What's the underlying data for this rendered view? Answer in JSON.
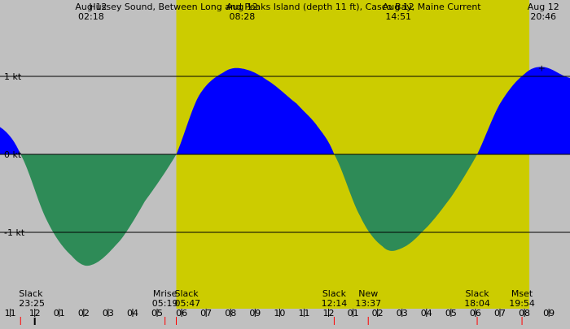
{
  "chart_data": {
    "type": "area",
    "title": "Hussey Sound, Between Long and Peaks Island (depth 11 ft), Casco Bay, Maine Current",
    "unit": "kt",
    "x_unit": "hours",
    "xlim": [
      -1.42,
      21.86
    ],
    "ylim": [
      -1.98,
      1.98
    ],
    "y_ticks": [
      {
        "value": 1,
        "label": "1 kt"
      },
      {
        "value": 0,
        "label": "0 kt"
      },
      {
        "value": -1,
        "label": "-1 kt"
      }
    ],
    "daylight": {
      "start": 5.78,
      "end": 20.2
    },
    "top_events": [
      {
        "x": 2.3,
        "date": "Aug 12",
        "time": "02:18"
      },
      {
        "x": 8.47,
        "date": "Aug 12",
        "time": "08:28"
      },
      {
        "x": 14.85,
        "date": "Aug 12",
        "time": "14:51"
      },
      {
        "x": 20.77,
        "date": "Aug 12",
        "time": "20:46"
      }
    ],
    "current_knots": [
      {
        "x": -1.42,
        "y": 0.35
      },
      {
        "x": -0.58,
        "y": 0.0
      },
      {
        "x": 0.5,
        "y": -0.85
      },
      {
        "x": 1.5,
        "y": -1.3
      },
      {
        "x": 2.3,
        "y": -1.42
      },
      {
        "x": 3.5,
        "y": -1.1
      },
      {
        "x": 4.5,
        "y": -0.6
      },
      {
        "x": 5.78,
        "y": 0.0
      },
      {
        "x": 6.7,
        "y": 0.75
      },
      {
        "x": 7.7,
        "y": 1.05
      },
      {
        "x": 8.47,
        "y": 1.1
      },
      {
        "x": 9.5,
        "y": 0.95
      },
      {
        "x": 10.7,
        "y": 0.65
      },
      {
        "x": 11.5,
        "y": 0.38
      },
      {
        "x": 12.23,
        "y": 0.0
      },
      {
        "x": 13.3,
        "y": -0.8
      },
      {
        "x": 14.2,
        "y": -1.18
      },
      {
        "x": 14.85,
        "y": -1.22
      },
      {
        "x": 15.8,
        "y": -1.0
      },
      {
        "x": 17.0,
        "y": -0.55
      },
      {
        "x": 18.07,
        "y": 0.0
      },
      {
        "x": 19.0,
        "y": 0.65
      },
      {
        "x": 20.0,
        "y": 1.03
      },
      {
        "x": 20.77,
        "y": 1.12
      },
      {
        "x": 21.86,
        "y": 0.98
      }
    ],
    "bottom_events": [
      {
        "x": -0.58,
        "label": "Slack",
        "time": "23:25",
        "align": "start"
      },
      {
        "x": 5.32,
        "label": "Mrise",
        "time": "05:19",
        "align": "middle"
      },
      {
        "x": 5.78,
        "label": "Slack",
        "time": "05:47",
        "align": "start"
      },
      {
        "x": 12.23,
        "label": "Slack",
        "time": "12:14",
        "align": "middle"
      },
      {
        "x": 13.62,
        "label": "New",
        "time": "13:37",
        "align": "middle"
      },
      {
        "x": 18.07,
        "label": "Slack",
        "time": "18:04",
        "align": "middle"
      },
      {
        "x": 19.9,
        "label": "Mset",
        "time": "19:54",
        "align": "middle"
      }
    ],
    "hour_ticks": [
      {
        "x": -1,
        "label": "11"
      },
      {
        "x": 0,
        "label": "12"
      },
      {
        "x": 1,
        "label": "01"
      },
      {
        "x": 2,
        "label": "02"
      },
      {
        "x": 3,
        "label": "03"
      },
      {
        "x": 4,
        "label": "04"
      },
      {
        "x": 5,
        "label": "05"
      },
      {
        "x": 6,
        "label": "06"
      },
      {
        "x": 7,
        "label": "07"
      },
      {
        "x": 8,
        "label": "08"
      },
      {
        "x": 9,
        "label": "09"
      },
      {
        "x": 10,
        "label": "10"
      },
      {
        "x": 11,
        "label": "11"
      },
      {
        "x": 12,
        "label": "12"
      },
      {
        "x": 13,
        "label": "01"
      },
      {
        "x": 14,
        "label": "02"
      },
      {
        "x": 15,
        "label": "03"
      },
      {
        "x": 16,
        "label": "04"
      },
      {
        "x": 17,
        "label": "05"
      },
      {
        "x": 18,
        "label": "06"
      },
      {
        "x": 19,
        "label": "07"
      },
      {
        "x": 20,
        "label": "08"
      },
      {
        "x": 21,
        "label": "09"
      }
    ],
    "colors": {
      "night": "#c0c0c0",
      "day": "#cccc00",
      "flood": "#0000ff",
      "ebb": "#2e8b57",
      "event_tick": "#ff0000"
    }
  }
}
